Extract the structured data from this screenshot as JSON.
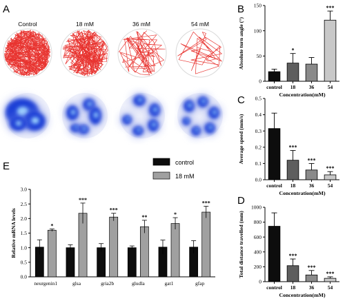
{
  "panels": {
    "A": "A",
    "B": "B",
    "C": "C",
    "D": "D",
    "E": "E"
  },
  "panel_a": {
    "conditions": [
      "Control",
      "18 mM",
      "36 mM",
      "54 mM"
    ]
  },
  "colors": {
    "trace_red": "#e8332f",
    "heat_blue": "#1f3fd6",
    "bar_black": "#0d0d0d",
    "bar_gray_dark": "#5e5e5e",
    "bar_gray_mid": "#8a8a8a",
    "bar_gray_light": "#c8c8c8",
    "bar_gray_e": "#a0a0a0"
  },
  "chart_data": [
    {
      "id": "B",
      "type": "bar",
      "categories": [
        "control",
        "18",
        "36",
        "54"
      ],
      "values": [
        19,
        36,
        34,
        121
      ],
      "errors": [
        5,
        19,
        13,
        18
      ],
      "significance": [
        "",
        "*",
        "",
        "***"
      ],
      "xlabel": "Concentration(mM)",
      "ylabel": "Absolute turn angle (°)",
      "yticks": [
        0,
        50,
        100,
        150
      ],
      "ylim": [
        0,
        150
      ]
    },
    {
      "id": "C",
      "type": "bar",
      "categories": [
        "control",
        "18",
        "36",
        "54"
      ],
      "values": [
        0.315,
        0.12,
        0.06,
        0.03
      ],
      "errors": [
        0.095,
        0.06,
        0.04,
        0.02
      ],
      "significance": [
        "",
        "***",
        "***",
        "***"
      ],
      "xlabel": "Concentration(mM)",
      "ylabel": "Average speed (mm/s)",
      "yticks": [
        "0.0",
        "0.1",
        "0.2",
        "0.3",
        "0.4",
        "0.5"
      ],
      "ylim": [
        0,
        0.5
      ]
    },
    {
      "id": "D",
      "type": "bar",
      "categories": [
        "control",
        "18",
        "36",
        "54"
      ],
      "values": [
        745,
        215,
        90,
        45
      ],
      "errors": [
        180,
        90,
        60,
        20
      ],
      "significance": [
        "",
        "***",
        "***",
        "***"
      ],
      "xlabel": "Concentration(mM)",
      "ylabel": "Total distance travelled (mm)",
      "yticks": [
        0,
        200,
        400,
        600,
        800,
        1000
      ],
      "ylim": [
        0,
        1000
      ]
    },
    {
      "id": "E",
      "type": "bar",
      "categories": [
        "neurgenin1",
        "glsa",
        "gria2b",
        "gludla",
        "gat1",
        "gfap"
      ],
      "series": [
        {
          "name": "control",
          "values": [
            1.02,
            1.0,
            1.0,
            1.0,
            1.02,
            1.02
          ],
          "errors": [
            0.25,
            0.1,
            0.14,
            0.06,
            0.24,
            0.22
          ]
        },
        {
          "name": "18 mM",
          "values": [
            1.6,
            2.18,
            2.05,
            1.72,
            1.83,
            2.22
          ],
          "errors": [
            0.04,
            0.35,
            0.13,
            0.22,
            0.2,
            0.2
          ]
        }
      ],
      "significance": [
        "*",
        "***",
        "***",
        "**",
        "*",
        "***"
      ],
      "ylabel": "Relative mRNA levels",
      "yticks": [
        "0.0",
        "0.5",
        "1.0",
        "1.5",
        "2.0",
        "2.5",
        "3.0"
      ],
      "ylim": [
        0,
        3.0
      ]
    }
  ]
}
